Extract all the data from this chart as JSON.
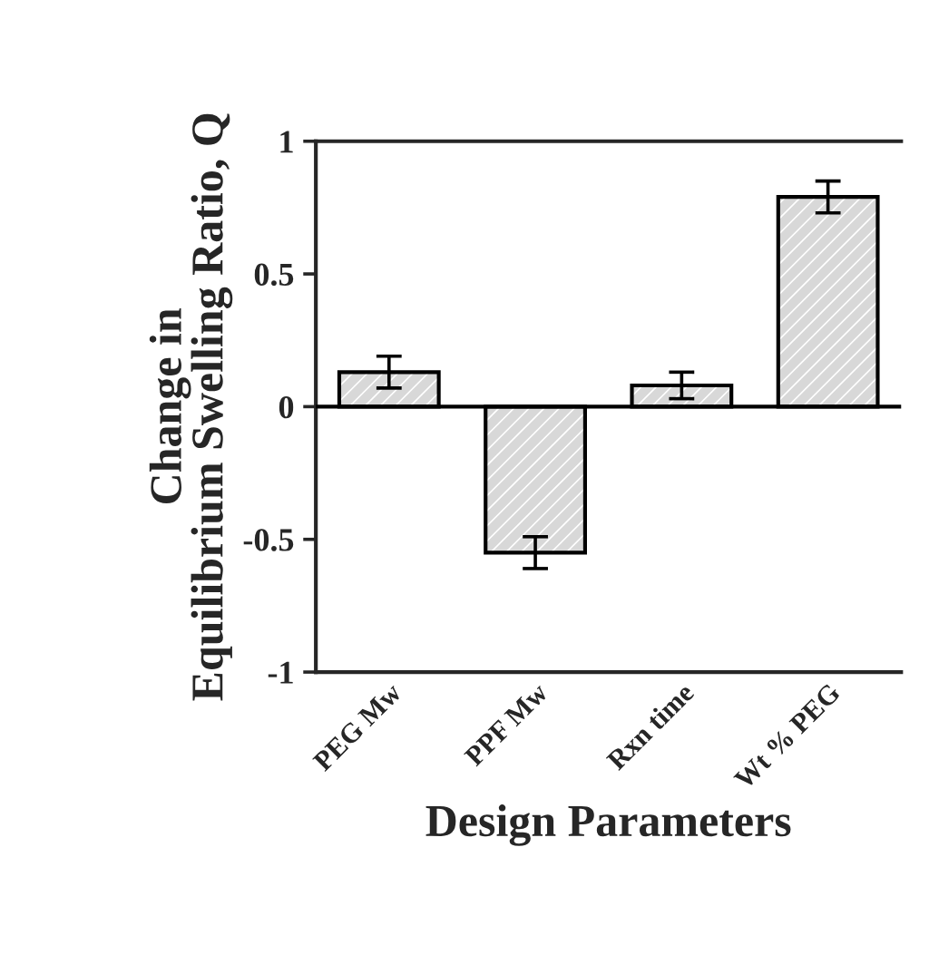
{
  "chart_data": {
    "type": "bar",
    "xlabel": "Design Parameters",
    "ylabel": "Change in\nEquilibrium Swelling Ratio, Q",
    "categories": [
      "PEG Mw",
      "PPF Mw",
      "Rxn time",
      "Wt % PEG"
    ],
    "values": [
      0.13,
      -0.55,
      0.08,
      0.79
    ],
    "errors": [
      0.06,
      0.06,
      0.05,
      0.06
    ],
    "color": "#d8d8d8",
    "ylim": [
      -1,
      1
    ],
    "yticks": [
      {
        "value": -1,
        "label": "-1"
      },
      {
        "value": -0.5,
        "label": "-0.5"
      },
      0,
      0.5,
      1
    ],
    "ref_lines": [
      {
        "axis": "y",
        "value": 0
      }
    ],
    "grid": false
  }
}
